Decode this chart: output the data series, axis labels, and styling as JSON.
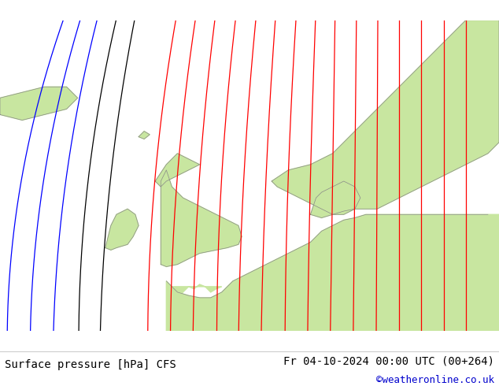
{
  "title_left": "Surface pressure [hPa] CFS",
  "title_right": "Fr 04-10-2024 00:00 UTC (00+264)",
  "copyright": "©weatheronline.co.uk",
  "bg_color": "#ffffff",
  "land_color_green": "#c8e6a0",
  "land_color_gray": "#d0d0d0",
  "sea_color": "#d8d8d8",
  "isobar_red_color": "#ff0000",
  "isobar_blue_color": "#0000ff",
  "isobar_black_color": "#000000",
  "coastline_color": "#888888",
  "text_color": "#000000",
  "copyright_color": "#0000cd",
  "title_fontsize": 10,
  "copyright_fontsize": 9
}
